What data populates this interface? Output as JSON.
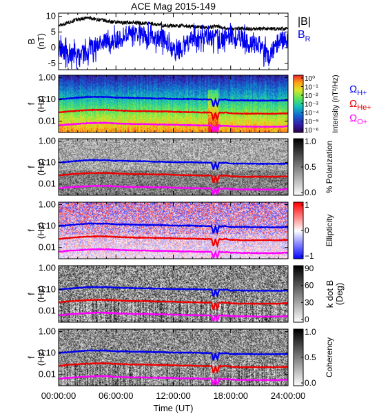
{
  "chart_data": {
    "title": "ACE Mag 2015-149",
    "xlabel": "Time (UT)",
    "x_ticks": [
      "00:00:00",
      "06:00:00",
      "12:00:00",
      "18:00:00",
      "24:00:00"
    ],
    "x_range_hours": [
      0,
      24
    ],
    "panels": [
      {
        "id": "b-field",
        "type": "line",
        "ylabel_top": "B",
        "ylabel_bottom": "(nT)",
        "ylim": [
          -7,
          11
        ],
        "y_ticks": [
          {
            "value": 10,
            "label": "10"
          },
          {
            "value": 5,
            "label": "5"
          },
          {
            "value": 0,
            "label": "0"
          },
          {
            "value": -5,
            "label": "-5"
          }
        ],
        "series": [
          {
            "name": "|B|",
            "color": "#000000",
            "x": [
              0,
              1,
              2,
              3,
              4,
              5,
              6,
              7,
              8,
              9,
              10,
              11,
              12,
              13,
              14,
              15,
              16,
              16.5,
              17,
              18,
              19,
              20,
              21,
              22,
              23,
              24
            ],
            "y": [
              7,
              8,
              9,
              9.5,
              9,
              8.5,
              8,
              8,
              8,
              7.8,
              7.5,
              7,
              7,
              7,
              6.8,
              6.5,
              6.5,
              7,
              6.5,
              6,
              6.2,
              6,
              6,
              6,
              6,
              6
            ]
          },
          {
            "name": "B_R",
            "legend_main": "B",
            "legend_sub": "R",
            "color": "#0000ee",
            "x": [
              0,
              1,
              2,
              3,
              4,
              5,
              6,
              7,
              8,
              9,
              10,
              11,
              12,
              13,
              14,
              15,
              16,
              16.5,
              17,
              18,
              19,
              20,
              21,
              22,
              23,
              24
            ],
            "y": [
              0,
              -2,
              -3,
              -1,
              1,
              3,
              2,
              4,
              5,
              4,
              3,
              3,
              -1,
              0,
              3,
              3,
              3,
              4,
              2,
              4,
              3,
              1,
              1,
              -3,
              2,
              3
            ]
          }
        ]
      },
      {
        "id": "intensity",
        "type": "heatmap",
        "ylabel_top": "f",
        "ylabel_bottom": "(Hz)",
        "colorbar_label": "Intensity (nT²/Hz)",
        "colorbar_ticks": [
          "10⁰",
          "10⁻¹",
          "10⁻²",
          "10⁻³",
          "10⁻⁴",
          "10⁻⁵",
          "10⁻⁶"
        ],
        "colorbar_colors": [
          "#ff3030",
          "#ffd000",
          "#60ff60",
          "#20c0c0",
          "#1060c0",
          "#3018a0",
          "#200040"
        ]
      },
      {
        "id": "polarization",
        "type": "heatmap",
        "ylabel_top": "f",
        "ylabel_bottom": "(Hz)",
        "colorbar_label": "% Polarization",
        "colorbar_ticks": [
          "1.0",
          "0.5",
          "0.0"
        ]
      },
      {
        "id": "ellipticity",
        "type": "heatmap",
        "ylabel_top": "f",
        "ylabel_bottom": "(Hz)",
        "colorbar_label": "Ellipticity",
        "colorbar_ticks": [
          "1",
          "0",
          "−1"
        ]
      },
      {
        "id": "kdotb",
        "type": "heatmap",
        "ylabel_top": "f",
        "ylabel_bottom": "(Hz)",
        "colorbar_label": "k dot B (Deg)",
        "colorbar_label_line1": "k dot B",
        "colorbar_label_line2": "(Deg)",
        "colorbar_ticks": [
          "90",
          "60",
          "30",
          "0"
        ]
      },
      {
        "id": "coherency",
        "type": "heatmap",
        "ylabel_top": "f",
        "ylabel_bottom": "(Hz)",
        "colorbar_label": "Coherency",
        "colorbar_ticks": [
          "1.0",
          "0.5",
          "0.0"
        ]
      }
    ],
    "freq_axis": {
      "scale": "log",
      "ylim": [
        0.003,
        1.3
      ],
      "ticks": [
        {
          "value": 1,
          "label": "1.00"
        },
        {
          "value": 0.1,
          "label": "0.10"
        },
        {
          "value": 0.01,
          "label": "0.01"
        }
      ]
    },
    "gyrofrequency_lines": [
      {
        "name": "ΩH+",
        "label_main": "Ω",
        "label_sub": "H+",
        "color": "#0000ee",
        "x": [
          0,
          1,
          2,
          3,
          4,
          5,
          6,
          7,
          8,
          9,
          10,
          11,
          12,
          13,
          14,
          15,
          16,
          16.2,
          16.4,
          16.6,
          16.8,
          17,
          17.5,
          18,
          19,
          20,
          21,
          22,
          23,
          24
        ],
        "y": [
          0.1,
          0.11,
          0.12,
          0.13,
          0.13,
          0.13,
          0.12,
          0.12,
          0.115,
          0.115,
          0.11,
          0.11,
          0.105,
          0.105,
          0.105,
          0.1,
          0.1,
          0.045,
          0.1,
          0.05,
          0.1,
          0.095,
          0.1,
          0.09,
          0.09,
          0.09,
          0.088,
          0.088,
          0.088,
          0.09
        ]
      },
      {
        "name": "ΩHe+",
        "label_main": "Ω",
        "label_sub": "He+",
        "color": "#ee0000",
        "x": [
          0,
          1,
          2,
          3,
          4,
          5,
          6,
          7,
          8,
          9,
          10,
          11,
          12,
          13,
          14,
          15,
          16,
          16.2,
          16.4,
          16.6,
          16.8,
          17,
          17.5,
          18,
          19,
          20,
          21,
          22,
          23,
          24
        ],
        "y": [
          0.025,
          0.028,
          0.03,
          0.032,
          0.033,
          0.033,
          0.031,
          0.03,
          0.029,
          0.029,
          0.028,
          0.028,
          0.027,
          0.026,
          0.026,
          0.025,
          0.025,
          0.011,
          0.025,
          0.012,
          0.025,
          0.024,
          0.025,
          0.023,
          0.022,
          0.022,
          0.022,
          0.022,
          0.022,
          0.023
        ]
      },
      {
        "name": "ΩO+",
        "label_main": "Ω",
        "label_sub": "O+",
        "color": "#ff00ff",
        "x": [
          0,
          1,
          2,
          3,
          4,
          5,
          6,
          7,
          8,
          9,
          10,
          11,
          12,
          13,
          14,
          15,
          16,
          16.2,
          16.4,
          16.6,
          16.8,
          17,
          17.5,
          18,
          19,
          20,
          21,
          22,
          23,
          24
        ],
        "y": [
          0.0063,
          0.007,
          0.0075,
          0.008,
          0.0083,
          0.0083,
          0.0078,
          0.0075,
          0.0073,
          0.0073,
          0.007,
          0.007,
          0.0068,
          0.0066,
          0.0065,
          0.0063,
          0.0063,
          0.0032,
          0.0063,
          0.0033,
          0.0063,
          0.006,
          0.0062,
          0.0058,
          0.0056,
          0.0056,
          0.0055,
          0.0055,
          0.0055,
          0.0058
        ]
      }
    ]
  }
}
